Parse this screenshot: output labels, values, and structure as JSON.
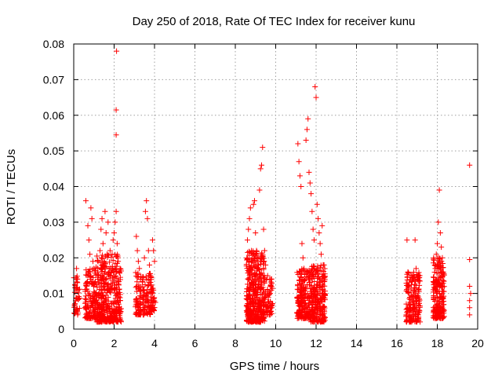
{
  "chart_data": {
    "type": "scatter",
    "title": "Day 250 of 2018, Rate Of TEC Index for receiver kunu",
    "xlabel": "GPS time / hours",
    "ylabel": "ROTI / TECUs",
    "xlim": [
      0,
      20
    ],
    "ylim": [
      0,
      0.08
    ],
    "grid": true,
    "marker": "+",
    "color": "#ff0000",
    "x_ticks": [
      0,
      2,
      4,
      6,
      8,
      10,
      12,
      14,
      16,
      18,
      20
    ],
    "x_tick_labels": [
      "0",
      "2",
      "4",
      "6",
      "8",
      "10",
      "12",
      "14",
      "16",
      "18",
      "20"
    ],
    "y_ticks": [
      0,
      0.01,
      0.02,
      0.03,
      0.04,
      0.05,
      0.06,
      0.07,
      0.08
    ],
    "y_tick_labels": [
      "0",
      "0.01",
      "0.02",
      "0.03",
      "0.04",
      "0.05",
      "0.06",
      "0.07",
      "0.08"
    ],
    "series": [
      {
        "name": "ROTI",
        "points": [
          [
            0.1,
            0.005
          ],
          [
            0.1,
            0.008
          ],
          [
            0.12,
            0.011
          ],
          [
            0.12,
            0.014
          ],
          [
            0.14,
            0.017
          ],
          [
            0.6,
            0.036
          ],
          [
            0.65,
            0.013
          ],
          [
            0.7,
            0.029
          ],
          [
            0.75,
            0.025
          ],
          [
            0.8,
            0.021
          ],
          [
            0.85,
            0.034
          ],
          [
            0.9,
            0.031
          ],
          [
            0.95,
            0.019
          ],
          [
            1.0,
            0.017
          ],
          [
            1.2,
            0.014
          ],
          [
            1.3,
            0.022
          ],
          [
            1.35,
            0.028
          ],
          [
            1.4,
            0.031
          ],
          [
            1.45,
            0.024
          ],
          [
            1.5,
            0.019
          ],
          [
            1.55,
            0.033
          ],
          [
            1.6,
            0.027
          ],
          [
            1.65,
            0.021
          ],
          [
            1.7,
            0.03
          ],
          [
            1.75,
            0.017
          ],
          [
            1.8,
            0.022
          ],
          [
            1.9,
            0.021
          ],
          [
            1.95,
            0.025
          ],
          [
            2.0,
            0.027
          ],
          [
            2.05,
            0.03
          ],
          [
            2.1,
            0.033
          ],
          [
            2.12,
            0.078
          ],
          [
            2.1,
            0.0615
          ],
          [
            2.1,
            0.0545
          ],
          [
            2.15,
            0.024
          ],
          [
            2.2,
            0.019
          ],
          [
            2.25,
            0.016
          ],
          [
            3.1,
            0.026
          ],
          [
            3.15,
            0.022
          ],
          [
            3.2,
            0.019
          ],
          [
            3.25,
            0.017
          ],
          [
            3.3,
            0.014
          ],
          [
            3.5,
            0.02
          ],
          [
            3.55,
            0.033
          ],
          [
            3.6,
            0.036
          ],
          [
            3.65,
            0.031
          ],
          [
            3.7,
            0.022
          ],
          [
            3.75,
            0.018
          ],
          [
            3.8,
            0.015
          ],
          [
            3.9,
            0.025
          ],
          [
            3.95,
            0.022
          ],
          [
            4.0,
            0.019
          ],
          [
            8.6,
            0.025
          ],
          [
            8.65,
            0.028
          ],
          [
            8.7,
            0.031
          ],
          [
            8.75,
            0.034
          ],
          [
            8.8,
            0.022
          ],
          [
            8.85,
            0.019
          ],
          [
            8.9,
            0.035
          ],
          [
            8.95,
            0.036
          ],
          [
            9.0,
            0.027
          ],
          [
            9.05,
            0.022
          ],
          [
            9.1,
            0.019
          ],
          [
            9.15,
            0.018
          ],
          [
            9.2,
            0.039
          ],
          [
            9.25,
            0.045
          ],
          [
            9.3,
            0.046
          ],
          [
            9.35,
            0.051
          ],
          [
            9.4,
            0.028
          ],
          [
            9.45,
            0.022
          ],
          [
            9.5,
            0.018
          ],
          [
            9.6,
            0.015
          ],
          [
            9.7,
            0.014
          ],
          [
            9.75,
            0.012
          ],
          [
            11.1,
            0.052
          ],
          [
            11.15,
            0.047
          ],
          [
            11.2,
            0.043
          ],
          [
            11.25,
            0.04
          ],
          [
            11.3,
            0.024
          ],
          [
            11.35,
            0.02
          ],
          [
            11.4,
            0.017
          ],
          [
            11.5,
            0.053
          ],
          [
            11.55,
            0.056
          ],
          [
            11.6,
            0.059
          ],
          [
            11.65,
            0.044
          ],
          [
            11.7,
            0.041
          ],
          [
            11.75,
            0.038
          ],
          [
            11.8,
            0.033
          ],
          [
            11.85,
            0.028
          ],
          [
            11.9,
            0.025
          ],
          [
            11.95,
            0.068
          ],
          [
            12.0,
            0.065
          ],
          [
            12.05,
            0.035
          ],
          [
            12.1,
            0.031
          ],
          [
            12.15,
            0.027
          ],
          [
            12.2,
            0.024
          ],
          [
            12.25,
            0.021
          ],
          [
            12.3,
            0.029
          ],
          [
            12.35,
            0.018
          ],
          [
            16.5,
            0.025
          ],
          [
            16.55,
            0.016
          ],
          [
            16.6,
            0.013
          ],
          [
            16.7,
            0.011
          ],
          [
            16.8,
            0.009
          ],
          [
            16.9,
            0.025
          ],
          [
            16.95,
            0.017
          ],
          [
            17.0,
            0.014
          ],
          [
            17.05,
            0.011
          ],
          [
            17.9,
            0.017
          ],
          [
            17.95,
            0.021
          ],
          [
            18.0,
            0.024
          ],
          [
            18.05,
            0.03
          ],
          [
            18.1,
            0.039
          ],
          [
            18.15,
            0.027
          ],
          [
            18.2,
            0.023
          ],
          [
            18.25,
            0.02
          ],
          [
            18.3,
            0.016
          ],
          [
            19.6,
            0.046
          ],
          [
            19.6,
            0.0195
          ],
          [
            19.6,
            0.012
          ],
          [
            19.65,
            0.01
          ],
          [
            19.6,
            0.008
          ],
          [
            19.6,
            0.006
          ],
          [
            19.6,
            0.004
          ]
        ],
        "dense_clusters": [
          {
            "x": [
              0.0,
              0.3
            ],
            "y": [
              0.004,
              0.015
            ],
            "count": 40
          },
          {
            "x": [
              0.55,
              1.1
            ],
            "y": [
              0.003,
              0.017
            ],
            "count": 140
          },
          {
            "x": [
              1.1,
              2.35
            ],
            "y": [
              0.002,
              0.021
            ],
            "count": 420
          },
          {
            "x": [
              3.05,
              3.35
            ],
            "y": [
              0.004,
              0.016
            ],
            "count": 60
          },
          {
            "x": [
              3.4,
              3.85
            ],
            "y": [
              0.004,
              0.016
            ],
            "count": 90
          },
          {
            "x": [
              3.85,
              4.05
            ],
            "y": [
              0.005,
              0.012
            ],
            "count": 30
          },
          {
            "x": [
              8.55,
              9.45
            ],
            "y": [
              0.002,
              0.022
            ],
            "count": 420
          },
          {
            "x": [
              9.45,
              9.85
            ],
            "y": [
              0.004,
              0.015
            ],
            "count": 60
          },
          {
            "x": [
              11.05,
              11.7
            ],
            "y": [
              0.003,
              0.017
            ],
            "count": 200
          },
          {
            "x": [
              11.7,
              12.45
            ],
            "y": [
              0.002,
              0.018
            ],
            "count": 260
          },
          {
            "x": [
              16.45,
              17.15
            ],
            "y": [
              0.002,
              0.016
            ],
            "count": 180
          },
          {
            "x": [
              17.8,
              18.35
            ],
            "y": [
              0.003,
              0.02
            ],
            "count": 220
          }
        ]
      }
    ]
  }
}
